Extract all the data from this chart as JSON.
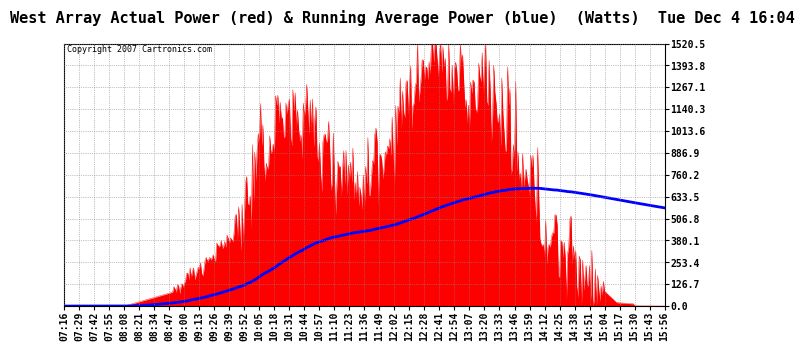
{
  "title": "West Array Actual Power (red) & Running Average Power (blue)  (Watts)  Tue Dec 4 16:04",
  "copyright": "Copyright 2007 Cartronics.com",
  "ylabel_right": [
    "1520.5",
    "1393.8",
    "1267.1",
    "1140.3",
    "1013.6",
    "886.9",
    "760.2",
    "633.5",
    "506.8",
    "380.1",
    "253.4",
    "126.7",
    "0.0"
  ],
  "ymax": 1520.5,
  "ymin": 0.0,
  "fill_color": "#FF0000",
  "line_color": "#0000FF",
  "background_color": "#FFFFFF",
  "plot_bg_color": "#FFFFFF",
  "grid_color": "#888888",
  "title_fontsize": 11,
  "tick_fontsize": 7,
  "xticks": [
    "07:16",
    "07:29",
    "07:42",
    "07:55",
    "08:08",
    "08:21",
    "08:34",
    "08:47",
    "09:00",
    "09:13",
    "09:26",
    "09:39",
    "09:52",
    "10:05",
    "10:18",
    "10:31",
    "10:44",
    "10:57",
    "11:10",
    "11:23",
    "11:36",
    "11:49",
    "12:02",
    "12:15",
    "12:28",
    "12:41",
    "12:54",
    "13:07",
    "13:20",
    "13:33",
    "13:46",
    "13:59",
    "14:12",
    "14:25",
    "14:38",
    "14:51",
    "15:04",
    "15:17",
    "15:30",
    "15:43",
    "15:56"
  ]
}
